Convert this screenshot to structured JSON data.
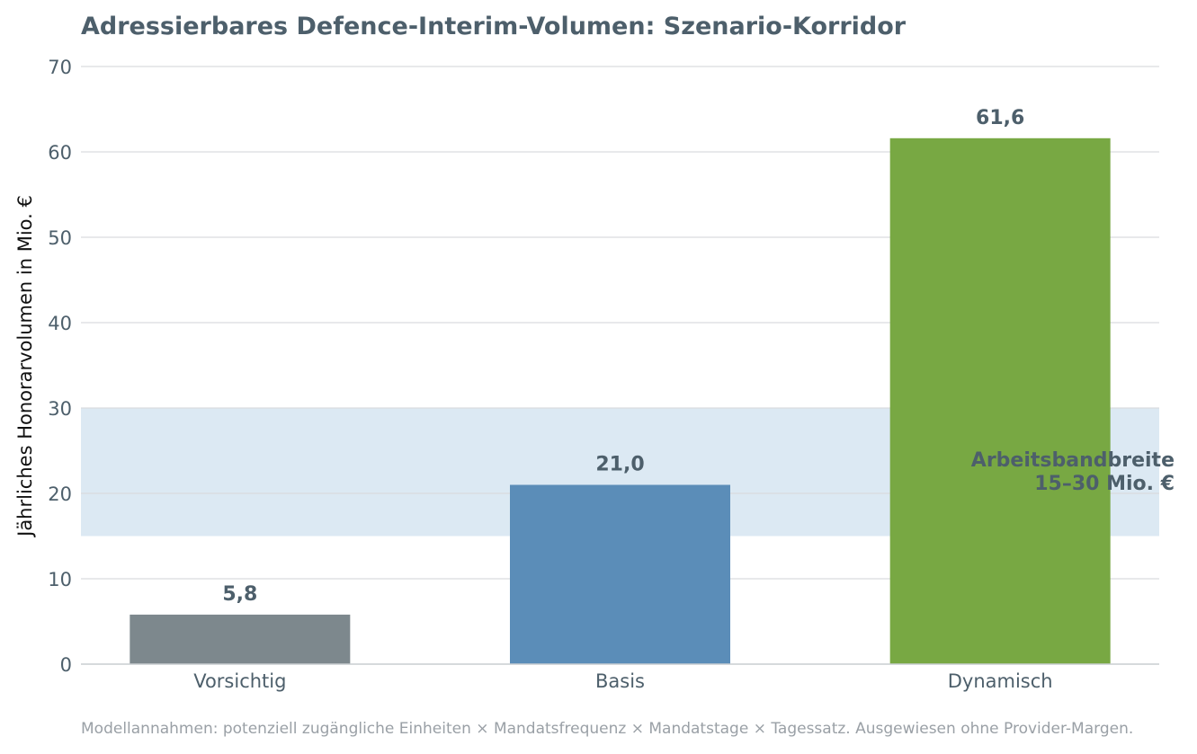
{
  "chart_data": {
    "type": "bar",
    "title": "Adressierbares Defence-Interim-Volumen: Szenario-Korridor",
    "xlabel": "",
    "ylabel": "Jährliches Honorarvolumen in Mio. €",
    "categories": [
      "Vorsichtig",
      "Basis",
      "Dynamisch"
    ],
    "values": [
      5.8,
      21.0,
      61.6
    ],
    "value_labels": [
      "5,8",
      "21,0",
      "61,6"
    ],
    "bar_colors": [
      "#7d888d",
      "#5b8db8",
      "#78a843"
    ],
    "ylim": [
      0,
      70
    ],
    "yticks": [
      0,
      10,
      20,
      30,
      40,
      50,
      60,
      70
    ],
    "grid": true,
    "band": {
      "from": 15,
      "to": 30,
      "color": "#dce9f3",
      "label_line1": "Arbeitsbandbreite",
      "label_line2": "15–30 Mio. €"
    },
    "footnote": "Modellannahmen: potenziell zugängliche Einheiten × Mandatsfrequenz × Mandatstage × Tagessatz. Ausgewiesen ohne Provider-Margen."
  }
}
